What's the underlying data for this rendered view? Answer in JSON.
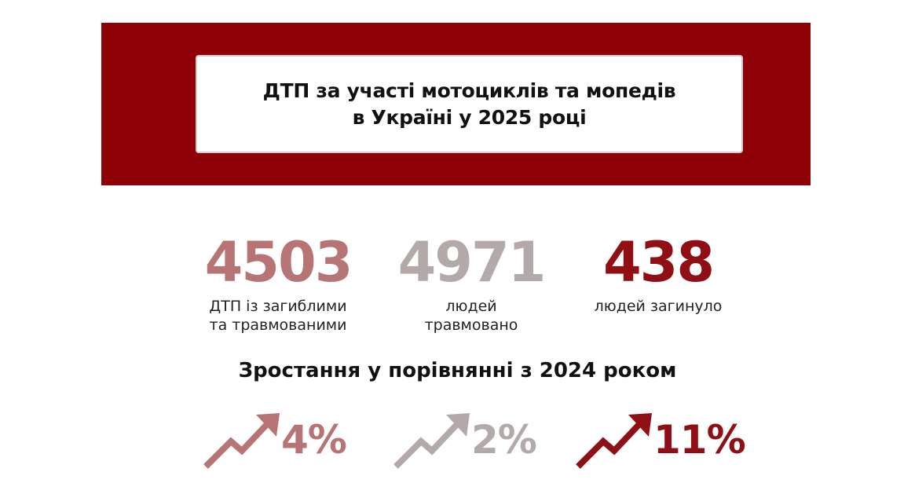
{
  "header": {
    "title_line1": "ДТП за участі мотоциклів та мопедів",
    "title_line2": "в Україні у 2025 році"
  },
  "stats": [
    {
      "value": "4503",
      "label_line1": "ДТП із загиблими",
      "label_line2": "та травмованими",
      "color": "#b77474"
    },
    {
      "value": "4971",
      "label_line1": "людей",
      "label_line2": "травмовано",
      "color": "#b3a9a9"
    },
    {
      "value": "438",
      "label_line1": "людей загинуло",
      "label_line2": "",
      "color": "#8f0f14"
    }
  ],
  "growth_section": {
    "title": "Зростання у порівнянні з 2024 роком",
    "items": [
      {
        "value": "4%",
        "icon": "trend-up-arrow-icon",
        "color": "#b77474"
      },
      {
        "value": "2%",
        "icon": "trend-up-arrow-icon",
        "color": "#b3a9a9"
      },
      {
        "value": "11%",
        "icon": "trend-up-arrow-icon",
        "color": "#8f0f14"
      }
    ]
  },
  "colors": {
    "banner": "#8f0007"
  }
}
